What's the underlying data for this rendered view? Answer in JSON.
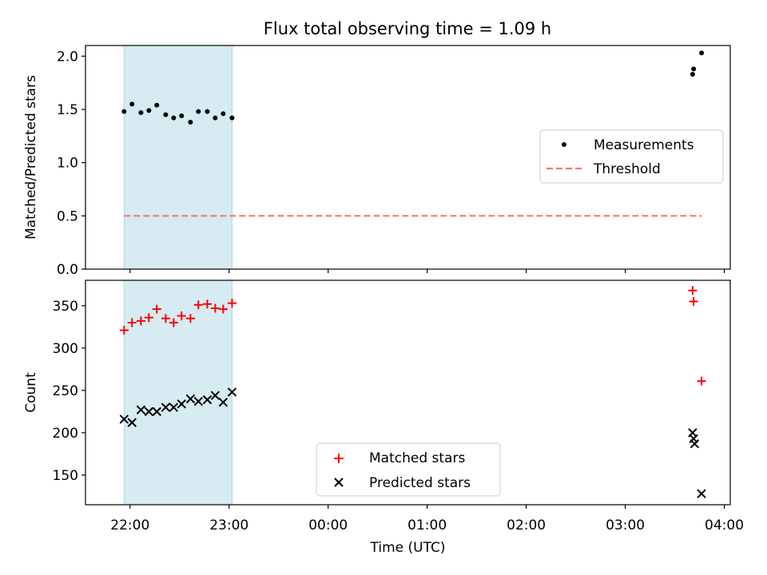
{
  "figure": {
    "title": "Flux total observing time = 1.09 h"
  },
  "chart_data": [
    {
      "type": "scatter",
      "name": "ratio-panel",
      "title": "Flux total observing time = 1.09 h",
      "xlabel": "",
      "ylabel": "Matched/Predicted stars",
      "x_axis": "time (hours, UTC, 21.0 = 21:00; values past 24 are next day)",
      "xlim": [
        21.55,
        28.06
      ],
      "ylim": [
        0.0,
        2.1
      ],
      "yticks": [
        0.0,
        0.5,
        1.0,
        1.5,
        2.0
      ],
      "ytick_labels": [
        "0.0",
        "0.5",
        "1.0",
        "1.5",
        "2.0"
      ],
      "xticks": [
        22,
        23,
        24,
        25,
        26,
        27,
        28
      ],
      "shaded_span": {
        "x0": 21.94,
        "x1": 23.03,
        "color": "#add8e6"
      },
      "legend": {
        "placement": "center-right",
        "entries": [
          "Measurements",
          "Threshold"
        ]
      },
      "series": [
        {
          "name": "Measurements",
          "marker": "dot",
          "color": "#000000",
          "x": [
            21.94,
            22.02,
            22.11,
            22.19,
            22.27,
            22.36,
            22.44,
            22.52,
            22.61,
            22.69,
            22.78,
            22.86,
            22.94,
            23.03,
            27.68,
            27.69,
            27.77
          ],
          "y": [
            1.48,
            1.55,
            1.47,
            1.49,
            1.54,
            1.45,
            1.42,
            1.44,
            1.38,
            1.48,
            1.48,
            1.42,
            1.46,
            1.42,
            1.83,
            1.88,
            2.03
          ]
        },
        {
          "name": "Threshold",
          "marker": "dashed-line",
          "color": "#ff7373",
          "x": [
            21.94,
            27.77
          ],
          "y": [
            0.5,
            0.5
          ]
        }
      ]
    },
    {
      "type": "scatter",
      "name": "count-panel",
      "xlabel": "Time (UTC)",
      "ylabel": "Count",
      "xlim": [
        21.55,
        28.06
      ],
      "ylim": [
        115,
        380
      ],
      "yticks": [
        150,
        200,
        250,
        300,
        350
      ],
      "ytick_labels": [
        "150",
        "200",
        "250",
        "300",
        "350"
      ],
      "xticks": [
        22,
        23,
        24,
        25,
        26,
        27,
        28
      ],
      "xtick_labels": [
        "22:00",
        "23:00",
        "00:00",
        "01:00",
        "02:00",
        "03:00",
        "04:00"
      ],
      "shaded_span": {
        "x0": 21.94,
        "x1": 23.03,
        "color": "#add8e6"
      },
      "legend": {
        "placement": "lower-center",
        "entries": [
          "Matched stars",
          "Predicted stars"
        ]
      },
      "series": [
        {
          "name": "Matched stars",
          "marker": "plus",
          "color": "#ff0000",
          "x": [
            21.94,
            22.02,
            22.11,
            22.19,
            22.27,
            22.36,
            22.44,
            22.52,
            22.61,
            22.69,
            22.78,
            22.86,
            22.94,
            23.03,
            27.68,
            27.69,
            27.77
          ],
          "y": [
            321,
            330,
            332,
            336,
            346,
            335,
            330,
            338,
            335,
            351,
            352,
            347,
            346,
            353,
            368,
            355,
            261
          ]
        },
        {
          "name": "Predicted stars",
          "marker": "x",
          "color": "#000000",
          "x": [
            21.94,
            22.02,
            22.11,
            22.19,
            22.27,
            22.36,
            22.44,
            22.52,
            22.61,
            22.69,
            22.78,
            22.86,
            22.94,
            23.03,
            27.68,
            27.69,
            27.7,
            27.77
          ],
          "y": [
            216,
            212,
            227,
            225,
            225,
            230,
            230,
            234,
            240,
            237,
            239,
            244,
            236,
            248,
            200,
            193,
            187,
            128
          ]
        }
      ]
    }
  ]
}
